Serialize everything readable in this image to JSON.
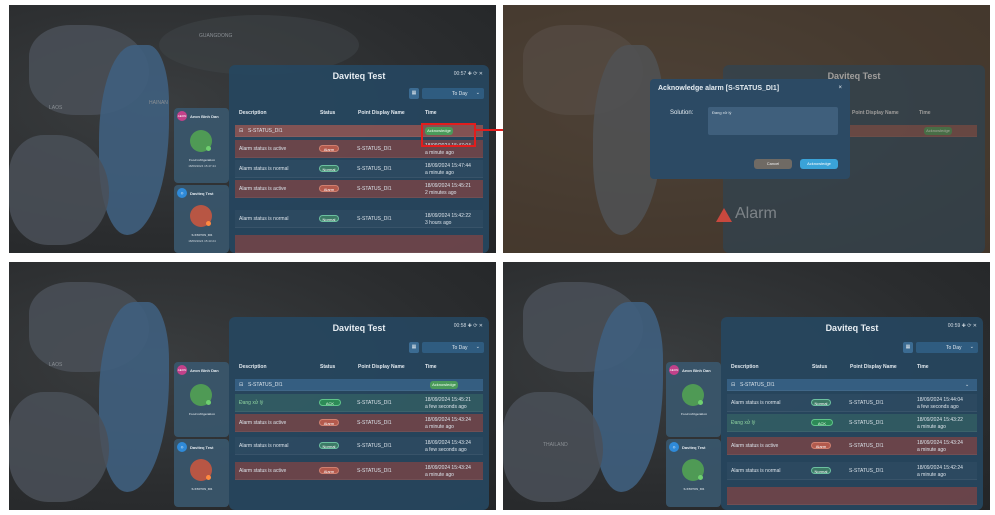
{
  "app_title": "Daviteq Test",
  "toolbar_mini": "00:57 ✚ ⟳ ✕",
  "toolbar_mini_b": "00:58 ✚ ⟳ ✕",
  "toolbar_mini_c": "00:59 ✚ ⟳ ✕",
  "date_select": "To Day",
  "columns": {
    "description": "Description",
    "status": "Status",
    "point": "Point Display Name",
    "time": "Time"
  },
  "group_label": "S-STATUS_DI1",
  "acknowledge_label": "Acknowledge",
  "status_alarm": "Alarm",
  "status_normal": "Normal",
  "status_ack": "ACK",
  "rows_p1": [
    {
      "desc": "Alarm status is active",
      "status": "Alarm",
      "point": "S-STATUS_DI1",
      "time": "18/09/2024 15:47:04",
      "ago": "a minute ago"
    },
    {
      "desc": "Alarm status is normal",
      "status": "Normal",
      "point": "S-STATUS_DI1",
      "time": "18/09/2024 15:47:44",
      "ago": "a minute ago"
    },
    {
      "desc": "Alarm status is active",
      "status": "Alarm",
      "point": "S-STATUS_DI1",
      "time": "18/09/2024 15:45:21",
      "ago": "2 minutes ago"
    },
    {
      "desc": "Alarm status is normal",
      "status": "Normal",
      "point": "S-STATUS_DI1",
      "time": "18/09/2024 15:42:22",
      "ago": "3 hours ago"
    }
  ],
  "rows_p3": [
    {
      "desc": "Đang xử lý",
      "status": "ACK",
      "point": "S-STATUS_DI1",
      "time": "18/09/2024 15:45:21",
      "ago": "a few seconds ago"
    },
    {
      "desc": "Alarm status is active",
      "status": "Alarm",
      "point": "S-STATUS_DI1",
      "time": "18/09/2024 15:43:24",
      "ago": "a minute ago"
    },
    {
      "desc": "Alarm status is normal",
      "status": "Normal",
      "point": "S-STATUS_DI1",
      "time": "18/09/2024 15:43:24",
      "ago": "a few seconds ago"
    },
    {
      "desc": "Alarm status is active",
      "status": "Alarm",
      "point": "S-STATUS_DI1",
      "time": "18/09/2024 15:43:24",
      "ago": "a minute ago"
    }
  ],
  "rows_p4": [
    {
      "desc": "Alarm status is normal",
      "status": "Normal",
      "point": "S-STATUS_DI1",
      "time": "18/09/2024 15:44:04",
      "ago": "a few seconds ago"
    },
    {
      "desc": "Đang xử lý",
      "status": "ACK",
      "point": "S-STATUS_DI1",
      "time": "18/09/2024 15:43:22",
      "ago": "a minute ago"
    },
    {
      "desc": "Alarm status is active",
      "status": "Alarm",
      "point": "S-STATUS_DI1",
      "time": "18/09/2024 15:43:24",
      "ago": "a minute ago"
    },
    {
      "desc": "Alarm status is normal",
      "status": "Normal",
      "point": "S-STATUS_DI1",
      "time": "18/09/2024 15:42:24",
      "ago": "a minute ago"
    }
  ],
  "side": {
    "site1": "Aeon Binh Dan",
    "site1_avatar": "AEON",
    "site1_cap": "Food refrigeration",
    "site1_sub": "18/09/2024 15:47:44",
    "site2": "Daviteq Test",
    "site2_cap": "S-STATUS_DI1",
    "site2_sub": "18/09/2024 15:43:24"
  },
  "modal": {
    "title": "Acknowledge alarm [S-STATUS_DI1]",
    "close": "×",
    "solution_label": "Solution:",
    "solution_value": "Đang xử lý",
    "cancel": "Cancel",
    "acknowledge": "Acknowledge"
  },
  "watermark": "Alarm",
  "map_labels": [
    "INDIA",
    "LAOS",
    "THAILAND",
    "CAMBODIA",
    "GUANGDONG",
    "HAINAN",
    "YUNNAN"
  ],
  "colors": {
    "highlight": "#e21d1d",
    "primary_btn": "#3aa3d8",
    "alarm": "#b35a4d",
    "normal": "#3c7a66"
  }
}
